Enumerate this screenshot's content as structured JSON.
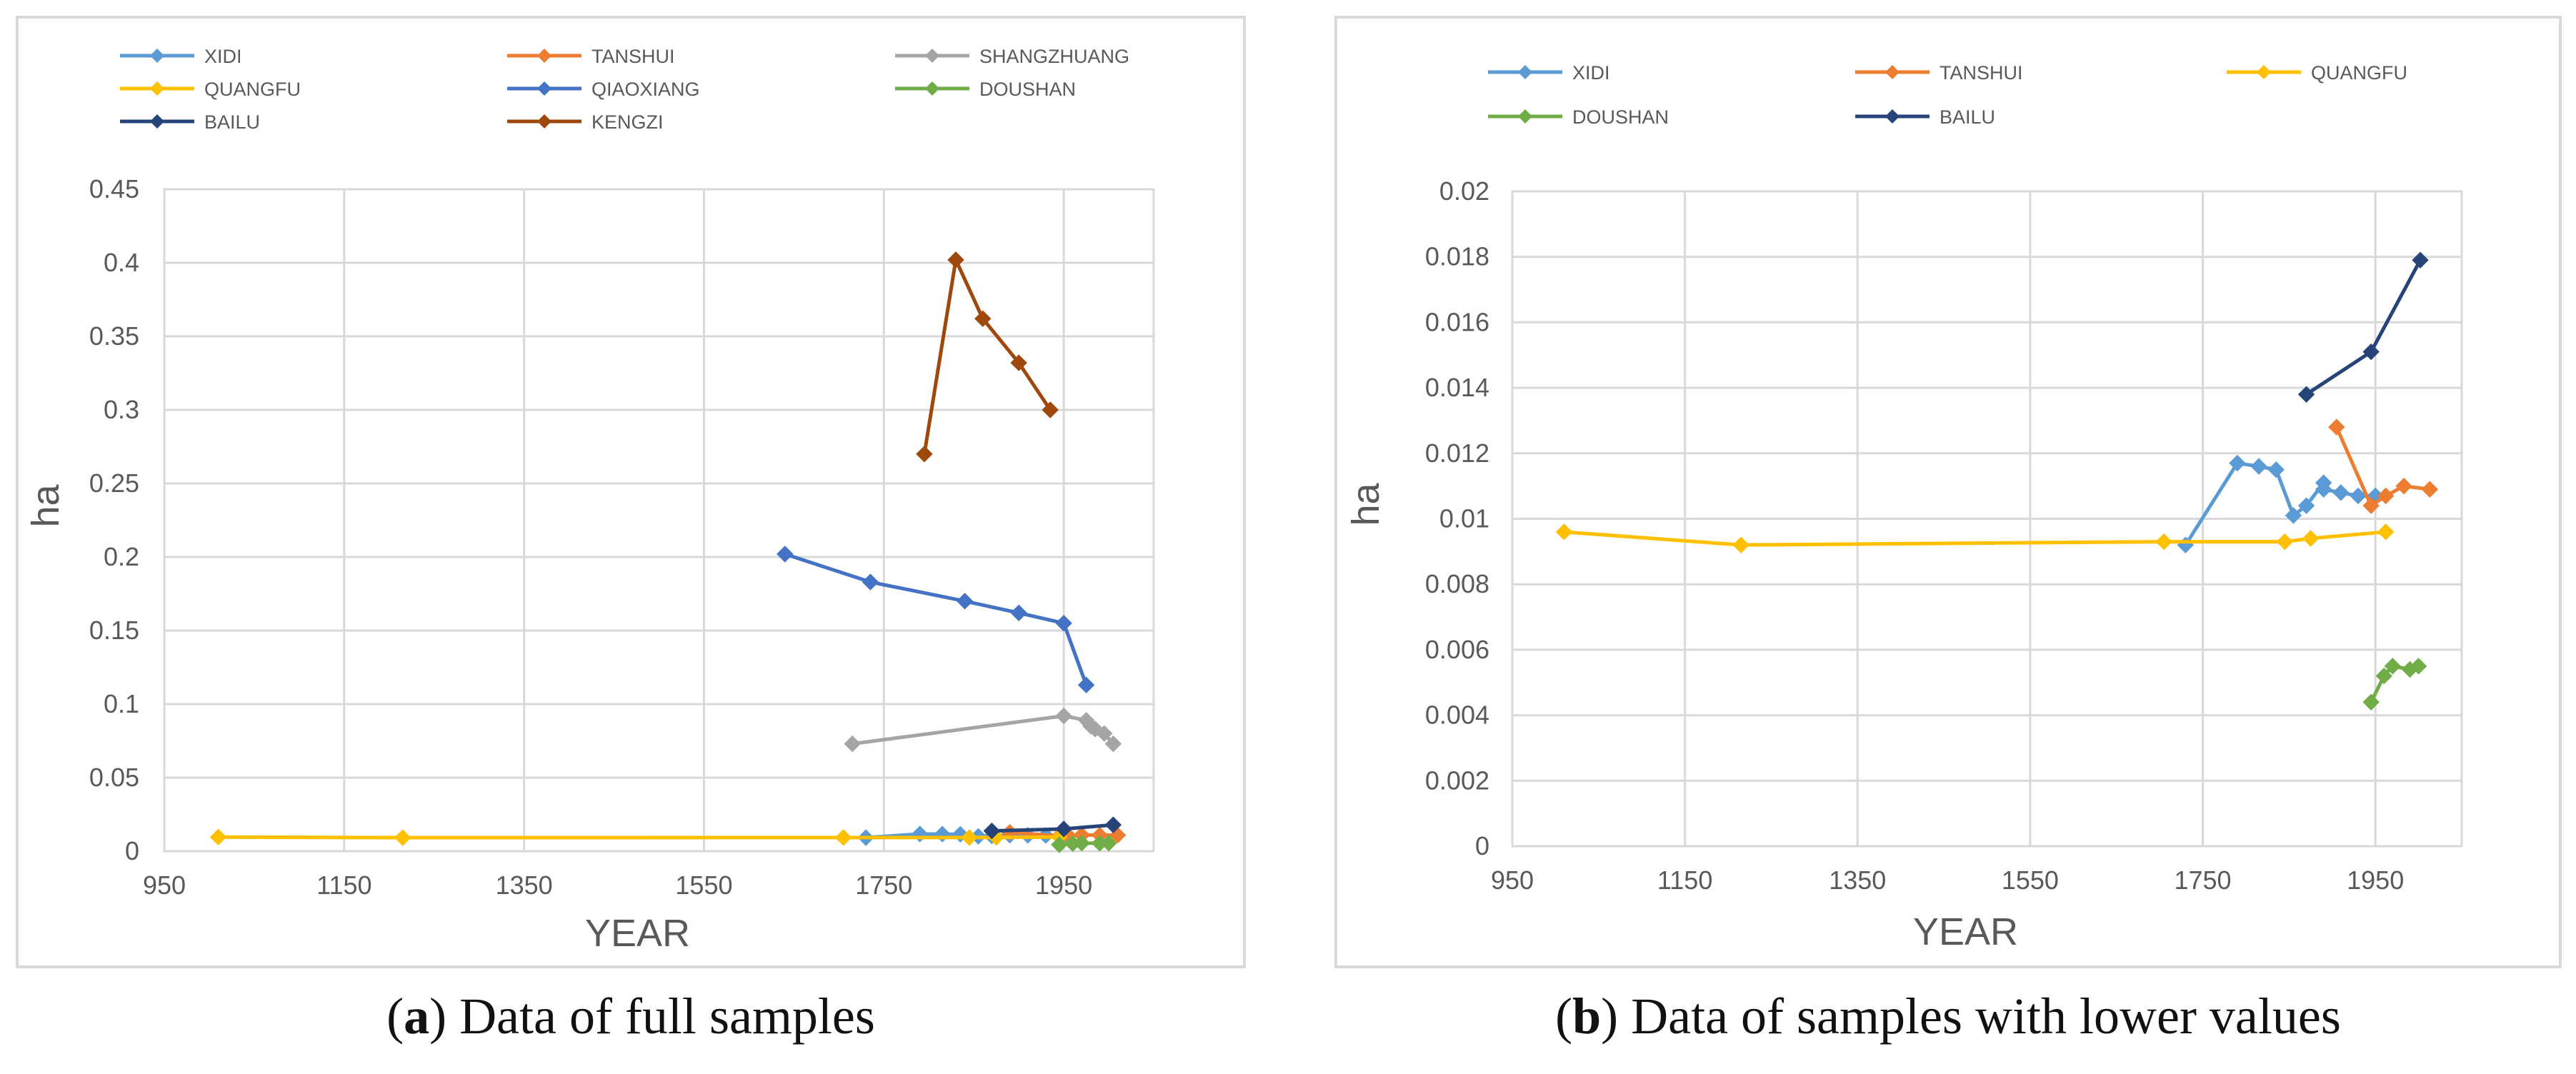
{
  "chart_data": [
    {
      "type": "line",
      "panel": "a",
      "caption_letter": "a",
      "caption_text": "Data of full samples",
      "xlabel": "YEAR",
      "ylabel": "ha",
      "xlim": [
        950,
        2050
      ],
      "ylim": [
        0,
        0.45
      ],
      "xticks": [
        950,
        1150,
        1350,
        1550,
        1750,
        1950
      ],
      "yticks": [
        0,
        0.05,
        0.1,
        0.15,
        0.2,
        0.25,
        0.3,
        0.35,
        0.4,
        0.45
      ],
      "ytick_labels": [
        "0",
        "0.05",
        "0.1",
        "0.15",
        "0.2",
        "0.25",
        "0.3",
        "0.35",
        "0.4",
        "0.45"
      ],
      "grid": true,
      "legend_position": "top",
      "series": [
        {
          "name": "XIDI",
          "color": "#5b9bd5",
          "x": [
            1730,
            1790,
            1815,
            1835,
            1855,
            1870,
            1890,
            1890,
            1910,
            1930,
            1950
          ],
          "y": [
            0.0092,
            0.0117,
            0.0116,
            0.0115,
            0.0101,
            0.0104,
            0.0111,
            0.0109,
            0.0108,
            0.0107,
            0.0107
          ]
        },
        {
          "name": "TANSHUI",
          "color": "#ed7d31",
          "x": [
            1890,
            1945,
            1955,
            1970,
            1990,
            2010
          ],
          "y": [
            0.0128,
            0.0104,
            0.0107,
            0.011,
            0.0109,
            0.0109
          ]
        },
        {
          "name": "SHANGZHUANG",
          "color": "#a5a5a5",
          "x": [
            1715,
            1950,
            1975,
            1980,
            1985,
            1995,
            2005
          ],
          "y": [
            0.073,
            0.092,
            0.089,
            0.085,
            0.083,
            0.08,
            0.073
          ]
        },
        {
          "name": "QUANGFU",
          "color": "#ffc000",
          "x": [
            1010,
            1215,
            1705,
            1845,
            1875,
            1945
          ],
          "y": [
            0.0096,
            0.0092,
            0.0093,
            0.0093,
            0.0094,
            0.0096
          ]
        },
        {
          "name": "QIAOXIANG",
          "color": "#4472c4",
          "x": [
            1640,
            1735,
            1840,
            1900,
            1950,
            1975
          ],
          "y": [
            0.202,
            0.183,
            0.17,
            0.162,
            0.155,
            0.113
          ]
        },
        {
          "name": "DOUSHAN",
          "color": "#70ad47",
          "x": [
            1945,
            1960,
            1970,
            1990,
            2000
          ],
          "y": [
            0.0044,
            0.0052,
            0.0055,
            0.0054,
            0.0055
          ]
        },
        {
          "name": "BAILU",
          "color": "#264478",
          "x": [
            1870,
            1950,
            2005
          ],
          "y": [
            0.0138,
            0.0151,
            0.0179
          ]
        },
        {
          "name": "KENGZI",
          "color": "#9e480e",
          "x": [
            1795,
            1830,
            1860,
            1900,
            1935
          ],
          "y": [
            0.27,
            0.402,
            0.362,
            0.332,
            0.3
          ]
        }
      ]
    },
    {
      "type": "line",
      "panel": "b",
      "caption_letter": "b",
      "caption_text": "Data of samples with lower values",
      "xlabel": "YEAR",
      "ylabel": "ha",
      "xlim": [
        950,
        2050
      ],
      "ylim": [
        0,
        0.02
      ],
      "xticks": [
        950,
        1150,
        1350,
        1550,
        1750,
        1950
      ],
      "yticks": [
        0,
        0.002,
        0.004,
        0.006,
        0.008,
        0.01,
        0.012,
        0.014,
        0.016,
        0.018,
        0.02
      ],
      "ytick_labels": [
        "0",
        "0.002",
        "0.004",
        "0.006",
        "0.008",
        "0.01",
        "0.012",
        "0.014",
        "0.016",
        "0.018",
        "0.02"
      ],
      "grid": true,
      "legend_position": "top",
      "series": [
        {
          "name": "XIDI",
          "color": "#5b9bd5",
          "x": [
            1730,
            1790,
            1815,
            1835,
            1855,
            1870,
            1890,
            1890,
            1910,
            1930,
            1950
          ],
          "y": [
            0.0092,
            0.0117,
            0.0116,
            0.0115,
            0.0101,
            0.0104,
            0.0111,
            0.0109,
            0.0108,
            0.0107,
            0.0107
          ]
        },
        {
          "name": "TANSHUI",
          "color": "#ed7d31",
          "x": [
            1905,
            1945,
            1962,
            1983,
            2013
          ],
          "y": [
            0.0128,
            0.0104,
            0.0107,
            0.011,
            0.0109
          ]
        },
        {
          "name": "QUANGFU",
          "color": "#ffc000",
          "x": [
            1010,
            1215,
            1705,
            1845,
            1875,
            1962
          ],
          "y": [
            0.0096,
            0.0092,
            0.0093,
            0.0093,
            0.0094,
            0.0096
          ]
        },
        {
          "name": "DOUSHAN",
          "color": "#70ad47",
          "x": [
            1945,
            1960,
            1970,
            1990,
            2000
          ],
          "y": [
            0.0044,
            0.0052,
            0.0055,
            0.0054,
            0.0055
          ]
        },
        {
          "name": "BAILU",
          "color": "#264478",
          "x": [
            1870,
            1945,
            2002
          ],
          "y": [
            0.0138,
            0.0151,
            0.0179
          ]
        }
      ]
    }
  ]
}
